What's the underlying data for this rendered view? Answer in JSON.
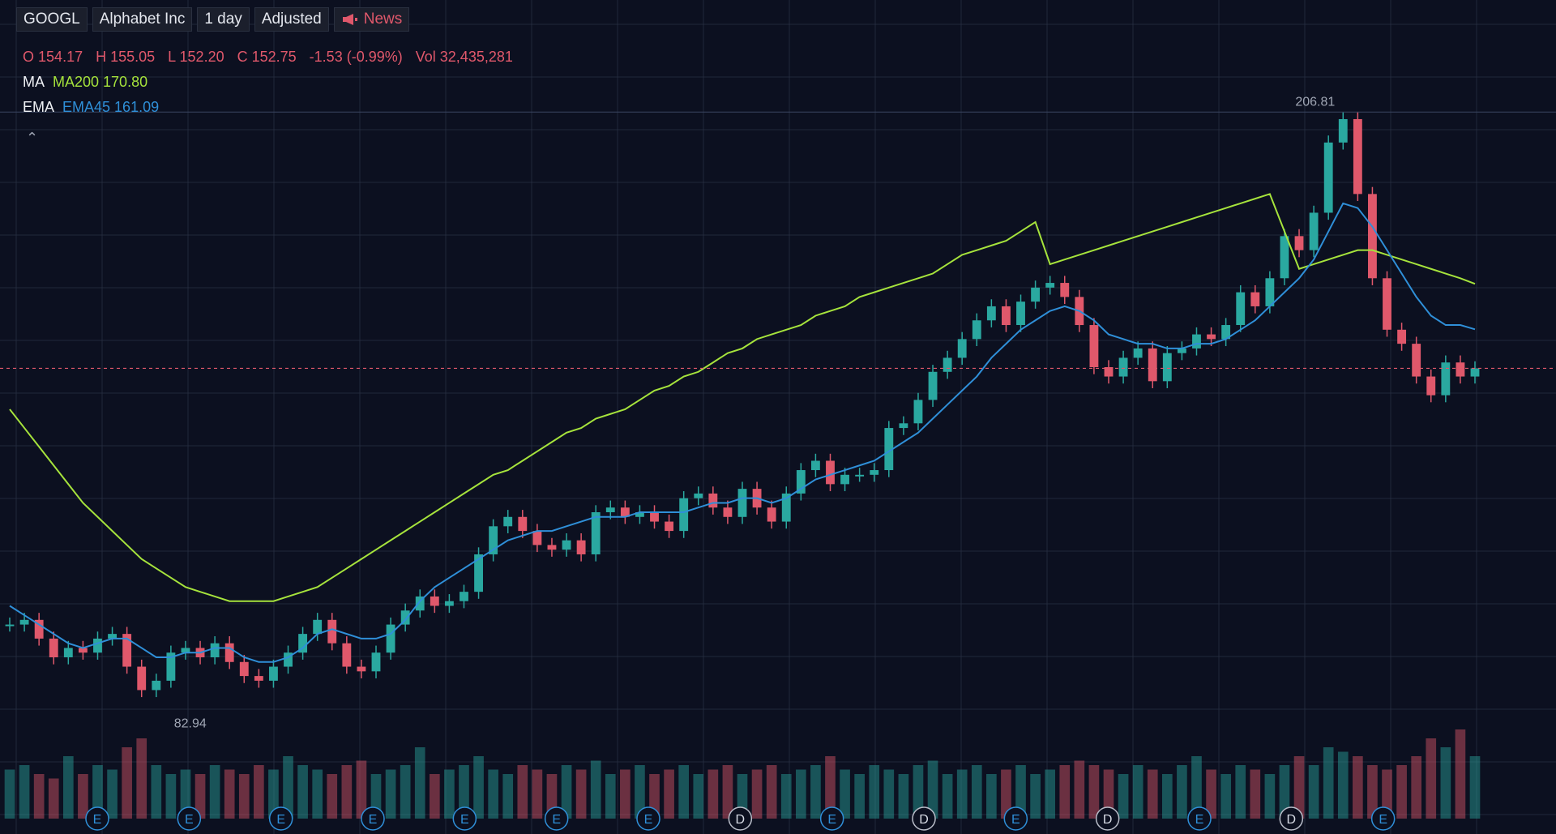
{
  "toolbar": {
    "symbol": "GOOGL",
    "company": "Alphabet Inc",
    "interval": "1 day",
    "adjustment": "Adjusted",
    "news_label": "News",
    "news_icon": "megaphone-icon"
  },
  "legend": {
    "ohlc": {
      "o_label": "O",
      "o_value": "154.17",
      "h_label": "H",
      "h_value": "155.05",
      "l_label": "L",
      "l_value": "152.20",
      "c_label": "C",
      "c_value": "152.75",
      "change": "-1.53 (-0.99%)",
      "vol_label": "Vol",
      "vol_value": "32,435,281"
    },
    "ma": {
      "label": "MA",
      "value": "MA200 170.80"
    },
    "ema": {
      "label": "EMA",
      "value": "EMA45 161.09"
    },
    "collapse_icon": "chevron-up-icon"
  },
  "colors": {
    "background": "#0c1020",
    "grid": "#2a3145",
    "up": "#2aa8a0",
    "down": "#e0586b",
    "ma200": "#a6e33c",
    "ema45": "#2f8fd8",
    "price_line": "#e0586b"
  },
  "chart_data": {
    "type": "line",
    "symbol": "GOOGL",
    "ylim": [
      60,
      215
    ],
    "last_close": 152.75,
    "max_label": "206.81",
    "min_label": "82.94",
    "max_value": 206.81,
    "min_value": 82.94,
    "series": [
      {
        "name": "GOOGL",
        "kind": "close",
        "x": [
          0,
          1,
          2,
          3,
          4,
          5,
          6,
          7,
          8,
          9,
          10,
          11,
          12,
          13,
          14,
          15,
          16,
          17,
          18,
          19,
          20,
          21,
          22,
          23,
          24,
          25,
          26,
          27,
          28,
          29,
          30,
          31,
          32,
          33,
          34,
          35,
          36,
          37,
          38,
          39,
          40,
          41,
          42,
          43,
          44,
          45,
          46,
          47,
          48,
          49,
          50,
          51,
          52,
          53,
          54,
          55,
          56,
          57,
          58,
          59,
          60,
          61,
          62,
          63,
          64,
          65,
          66,
          67,
          68,
          69,
          70,
          71,
          72,
          73,
          74,
          75,
          76,
          77,
          78,
          79,
          80,
          81,
          82,
          83,
          84,
          85,
          86,
          87,
          88,
          89,
          90,
          91,
          92,
          93,
          94,
          95,
          96,
          97,
          98,
          99,
          100
        ],
        "values": [
          98,
          99,
          95,
          91,
          93,
          92,
          95,
          96,
          89,
          84,
          86,
          92,
          93,
          91,
          94,
          90,
          87,
          86,
          89,
          92,
          96,
          99,
          94,
          89,
          88,
          92,
          98,
          101,
          104,
          102,
          103,
          105,
          113,
          119,
          121,
          118,
          115,
          114,
          116,
          113,
          122,
          123,
          121,
          122,
          120,
          118,
          125,
          126,
          123,
          121,
          127,
          123,
          120,
          126,
          131,
          133,
          128,
          130,
          130,
          131,
          140,
          141,
          146,
          152,
          155,
          159,
          163,
          166,
          162,
          167,
          170,
          171,
          168,
          162,
          153,
          151,
          155,
          157,
          150,
          156,
          157,
          160,
          159,
          162,
          169,
          166,
          172,
          181,
          178,
          186,
          201,
          206,
          190,
          172,
          161,
          158,
          151,
          147,
          154,
          151,
          152.75
        ]
      },
      {
        "name": "MA200",
        "values": [
          144,
          140,
          136,
          132,
          128,
          124,
          121,
          118,
          115,
          112,
          110,
          108,
          106,
          105,
          104,
          103,
          103,
          103,
          103,
          104,
          105,
          106,
          108,
          110,
          112,
          114,
          116,
          118,
          120,
          122,
          124,
          126,
          128,
          130,
          131,
          133,
          135,
          137,
          139,
          140,
          142,
          143,
          144,
          146,
          148,
          149,
          151,
          152,
          154,
          156,
          157,
          159,
          160,
          161,
          162,
          164,
          165,
          166,
          168,
          169,
          170,
          171,
          172,
          173,
          175,
          177,
          178,
          179,
          180,
          182,
          184,
          175,
          176,
          177,
          178,
          179,
          180,
          181,
          182,
          183,
          184,
          185,
          186,
          187,
          188,
          189,
          190,
          182,
          174,
          175,
          176,
          177,
          178,
          178,
          177,
          176,
          175,
          174,
          173,
          172,
          170.8
        ]
      },
      {
        "name": "EMA45",
        "values": [
          102,
          100,
          98,
          96,
          94,
          93,
          94,
          95,
          95,
          93,
          91,
          91,
          92,
          92,
          93,
          93,
          91,
          90,
          90,
          91,
          93,
          96,
          97,
          96,
          95,
          95,
          96,
          99,
          103,
          106,
          108,
          110,
          112,
          114,
          116,
          117,
          118,
          118,
          119,
          120,
          121,
          121,
          121,
          122,
          122,
          122,
          122,
          123,
          124,
          124,
          125,
          125,
          124,
          125,
          127,
          129,
          130,
          131,
          132,
          133,
          135,
          137,
          139,
          142,
          145,
          148,
          151,
          155,
          158,
          161,
          163,
          165,
          166,
          165,
          163,
          160,
          159,
          158,
          158,
          157,
          157,
          158,
          158,
          159,
          161,
          163,
          166,
          169,
          172,
          176,
          182,
          188,
          187,
          183,
          178,
          173,
          168,
          164,
          162,
          162,
          161.09
        ]
      }
    ],
    "volume": [
      0.55,
      0.6,
      0.5,
      0.45,
      0.7,
      0.5,
      0.6,
      0.55,
      0.8,
      0.9,
      0.6,
      0.5,
      0.55,
      0.5,
      0.6,
      0.55,
      0.5,
      0.6,
      0.55,
      0.7,
      0.6,
      0.55,
      0.5,
      0.6,
      0.65,
      0.5,
      0.55,
      0.6,
      0.8,
      0.5,
      0.55,
      0.6,
      0.7,
      0.55,
      0.5,
      0.6,
      0.55,
      0.5,
      0.6,
      0.55,
      0.65,
      0.5,
      0.55,
      0.6,
      0.5,
      0.55,
      0.6,
      0.5,
      0.55,
      0.6,
      0.5,
      0.55,
      0.6,
      0.5,
      0.55,
      0.6,
      0.7,
      0.55,
      0.5,
      0.6,
      0.55,
      0.5,
      0.6,
      0.65,
      0.5,
      0.55,
      0.6,
      0.5,
      0.55,
      0.6,
      0.5,
      0.55,
      0.6,
      0.65,
      0.6,
      0.55,
      0.5,
      0.6,
      0.55,
      0.5,
      0.6,
      0.7,
      0.55,
      0.5,
      0.6,
      0.55,
      0.5,
      0.6,
      0.7,
      0.6,
      0.8,
      0.75,
      0.7,
      0.6,
      0.55,
      0.6,
      0.7,
      0.9,
      0.8,
      1.0,
      0.7
    ],
    "event_markers": [
      "E",
      "E",
      "E",
      "E",
      "E",
      "E",
      "E",
      "D",
      "E",
      "D",
      "E",
      "D",
      "E",
      "D",
      "E"
    ]
  }
}
